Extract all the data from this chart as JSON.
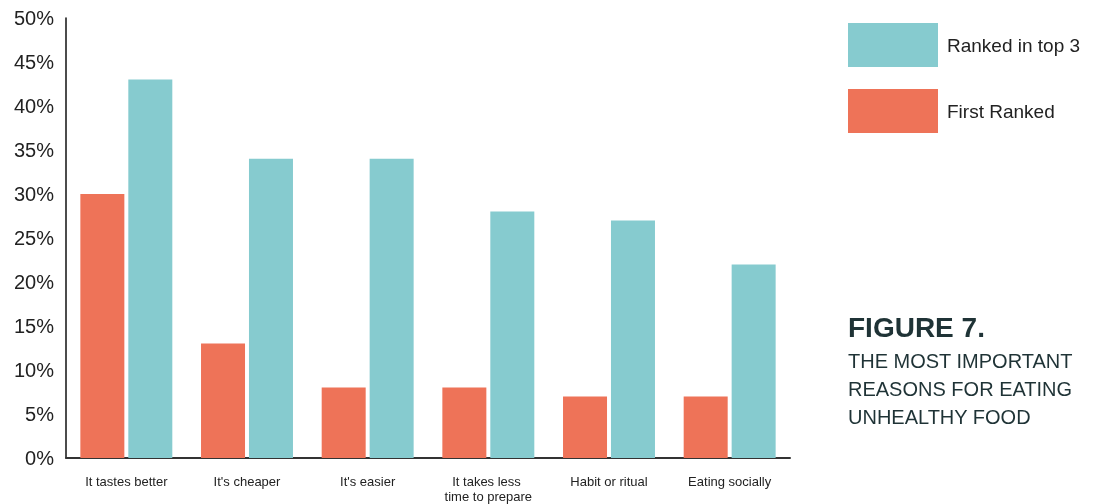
{
  "chart_data": {
    "type": "bar",
    "title": "FIGURE 7.",
    "subtitle": "THE MOST IMPORTANT REASONS FOR EATING UNHEALTHY FOOD",
    "categories": [
      "It tastes better",
      "It's cheaper",
      "It's easier",
      "It takes less time to prepare",
      "Habit or ritual",
      "Eating socially"
    ],
    "series": [
      {
        "name": "First Ranked",
        "color": "#ee7358",
        "values": [
          30,
          13,
          8,
          8,
          7,
          7
        ]
      },
      {
        "name": "Ranked in top 3",
        "color": "#86cbcf",
        "values": [
          43,
          34,
          34,
          28,
          27,
          22
        ]
      }
    ],
    "ylim": [
      0,
      50
    ],
    "yticks": [
      {
        "value": 0,
        "label": "0%"
      },
      {
        "value": 5,
        "label": "5%"
      },
      {
        "value": 10,
        "label": "10%"
      },
      {
        "value": 15,
        "label": "15%"
      },
      {
        "value": 20,
        "label": "20%"
      },
      {
        "value": 25,
        "label": "25%"
      },
      {
        "value": 30,
        "label": "30%"
      },
      {
        "value": 35,
        "label": "35%"
      },
      {
        "value": 40,
        "label": "40%"
      },
      {
        "value": 45,
        "label": "45%"
      },
      {
        "value": 50,
        "label": "50%"
      }
    ],
    "grid": false,
    "legend": "top right"
  }
}
